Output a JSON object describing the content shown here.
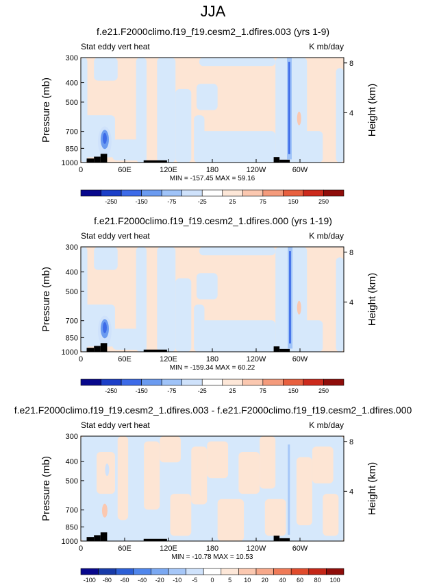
{
  "title": "JJA",
  "palette": {
    "cb9": [
      "#08088c",
      "#1c3fc8",
      "#3d6be8",
      "#6b9bf0",
      "#9fc3f8",
      "#cfe2fb",
      "#ffffff",
      "#fde7d8",
      "#fbc8b0",
      "#f49b7c",
      "#e8603f",
      "#cc2a1c",
      "#8f0d0a"
    ],
    "cb11": [
      "#08088c",
      "#173aa8",
      "#2c5fd6",
      "#4f86ec",
      "#7aa8f2",
      "#a6c7f8",
      "#cfe2fb",
      "#ffffff",
      "#fde7d8",
      "#fbc8b0",
      "#f7a88a",
      "#ef7a57",
      "#e04b2c",
      "#c42617",
      "#8f0d0a"
    ]
  },
  "chart_data": [
    {
      "type": "heatmap",
      "title": "f.e21.F2000climo.f19_f19.cesm2_1.dfires.003 (yrs 1-9)",
      "left_label": "Stat eddy vert heat",
      "right_label": "K mb/day",
      "ylabel": "Pressure (mb)",
      "ylabel_right": "Height (km)",
      "y_ticks": [
        "300",
        "400",
        "500",
        "700",
        "850",
        "1000"
      ],
      "y_right_ticks": [
        "8",
        "4"
      ],
      "x_ticks": [
        "0",
        "60E",
        "120E",
        "180",
        "120W",
        "60W"
      ],
      "stats": "MIN = -157.45   MAX =  59.16",
      "colorbar_labels": [
        "-250",
        "-150",
        "-75",
        "-25",
        "25",
        "75",
        "150",
        "250"
      ],
      "palette": "cb9",
      "field_variant": "a"
    },
    {
      "type": "heatmap",
      "title": "f.e21.F2000climo.f19_f19.cesm2_1.dfires.000 (yrs 1-19)",
      "left_label": "Stat eddy vert heat",
      "right_label": "K mb/day",
      "ylabel": "Pressure (mb)",
      "ylabel_right": "Height (km)",
      "y_ticks": [
        "300",
        "400",
        "500",
        "700",
        "850",
        "1000"
      ],
      "y_right_ticks": [
        "8",
        "4"
      ],
      "x_ticks": [
        "0",
        "60E",
        "120E",
        "180",
        "120W",
        "60W"
      ],
      "stats": "MIN = -159.34   MAX =  60.22",
      "colorbar_labels": [
        "-250",
        "-150",
        "-75",
        "-25",
        "25",
        "75",
        "150",
        "250"
      ],
      "palette": "cb9",
      "field_variant": "b"
    },
    {
      "type": "heatmap",
      "title": "f.e21.F2000climo.f19_f19.cesm2_1.dfires.003 - f.e21.F2000climo.f19_f19.cesm2_1.dfires.000",
      "left_label": "Stat eddy vert heat",
      "right_label": "K mb/day",
      "ylabel": "Pressure (mb)",
      "ylabel_right": "Height (km)",
      "y_ticks": [
        "300",
        "400",
        "500",
        "700",
        "850",
        "1000"
      ],
      "y_right_ticks": [
        "8",
        "4"
      ],
      "x_ticks": [
        "0",
        "60E",
        "120E",
        "180",
        "120W",
        "60W"
      ],
      "stats": "MIN = -10.78   MAX =  10.53",
      "colorbar_labels": [
        "-100",
        "-80",
        "-60",
        "-40",
        "-20",
        "-10",
        "-5",
        "0",
        "5",
        "10",
        "20",
        "40",
        "60",
        "80",
        "100"
      ],
      "palette": "cb11",
      "field_variant": "diff"
    }
  ]
}
